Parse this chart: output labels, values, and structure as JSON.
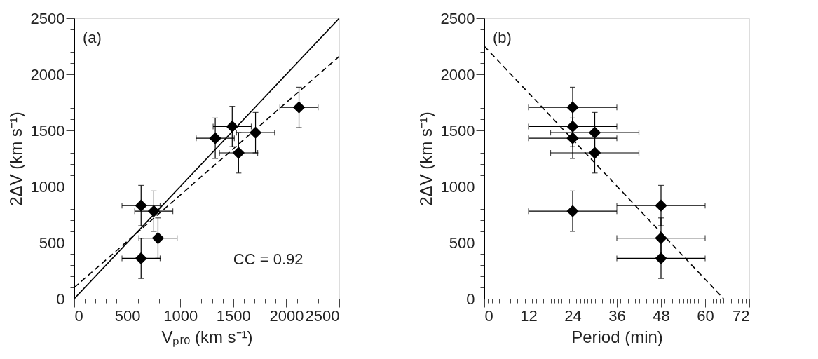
{
  "chart_data": [
    {
      "type": "scatter",
      "xlabel": "Vₚᵣₒ (km s⁻¹)",
      "ylabel": "2ΔV (km s⁻¹)",
      "annotations": [
        "(a)",
        "CC = 0.92"
      ],
      "grid": false,
      "xlim": [
        0,
        2500
      ],
      "ylim": [
        0,
        2500
      ],
      "xticks": [
        0,
        {
          "value": 100,
          "label": null
        },
        {
          "value": 200,
          "label": null
        },
        {
          "value": 300,
          "label": null
        },
        {
          "value": 400,
          "label": null
        },
        500,
        {
          "value": 600,
          "label": null
        },
        {
          "value": 700,
          "label": null
        },
        {
          "value": 800,
          "label": null
        },
        {
          "value": 900,
          "label": null
        },
        1000,
        {
          "value": 1100,
          "label": null
        },
        {
          "value": 1200,
          "label": null
        },
        {
          "value": 1300,
          "label": null
        },
        {
          "value": 1400,
          "label": null
        },
        1500,
        {
          "value": 1600,
          "label": null
        },
        {
          "value": 1700,
          "label": null
        },
        {
          "value": 1800,
          "label": null
        },
        {
          "value": 1900,
          "label": null
        },
        2000,
        {
          "value": 2100,
          "label": null
        },
        {
          "value": 2200,
          "label": null
        },
        {
          "value": 2300,
          "label": null
        },
        {
          "value": 2400,
          "label": null
        },
        2500
      ],
      "yticks": [
        0,
        {
          "value": 100,
          "label": null
        },
        {
          "value": 200,
          "label": null
        },
        {
          "value": 300,
          "label": null
        },
        {
          "value": 400,
          "label": null
        },
        500,
        {
          "value": 600,
          "label": null
        },
        {
          "value": 700,
          "label": null
        },
        {
          "value": 800,
          "label": null
        },
        {
          "value": 900,
          "label": null
        },
        1000,
        {
          "value": 1100,
          "label": null
        },
        {
          "value": 1200,
          "label": null
        },
        {
          "value": 1300,
          "label": null
        },
        {
          "value": 1400,
          "label": null
        },
        1500,
        {
          "value": 1600,
          "label": null
        },
        {
          "value": 1700,
          "label": null
        },
        {
          "value": 1800,
          "label": null
        },
        {
          "value": 1900,
          "label": null
        },
        2000,
        {
          "value": 2100,
          "label": null
        },
        {
          "value": 2200,
          "label": null
        },
        {
          "value": 2300,
          "label": null
        },
        {
          "value": 2400,
          "label": null
        },
        2500
      ],
      "series": [
        {
          "type": "scatter",
          "color": "#000000",
          "marker": "diamond",
          "x": [
            630,
            750,
            790,
            630,
            1330,
            1490,
            1550,
            1710,
            2120
          ],
          "values": [
            830,
            780,
            540,
            360,
            1430,
            1535,
            1300,
            1480,
            1705
          ],
          "errors": [
            180,
            180,
            180,
            180,
            180,
            180,
            180,
            180,
            180
          ],
          "xerrors": [
            180,
            180,
            180,
            180,
            180,
            180,
            180,
            180,
            180
          ]
        },
        {
          "type": "line",
          "color": "#000000",
          "line_style": "solid",
          "x": [
            0,
            2500
          ],
          "values": [
            0,
            2500
          ]
        },
        {
          "type": "line",
          "color": "#000000",
          "line_style": "dashed",
          "x": [
            0,
            2500
          ],
          "values": [
            100,
            2160
          ]
        }
      ]
    },
    {
      "type": "scatter",
      "xlabel": "Period (min)",
      "ylabel": "2ΔV (km s⁻¹)",
      "annotations": [
        "(b)"
      ],
      "grid": false,
      "xlim": [
        0,
        72
      ],
      "ylim": [
        0,
        2500
      ],
      "xticks": [
        0,
        {
          "value": 1,
          "label": null
        },
        {
          "value": 2,
          "label": null
        },
        {
          "value": 3,
          "label": null
        },
        {
          "value": 4,
          "label": null
        },
        {
          "value": 5,
          "label": null
        },
        {
          "value": 6,
          "label": null
        },
        {
          "value": 7,
          "label": null
        },
        {
          "value": 8,
          "label": null
        },
        {
          "value": 9,
          "label": null
        },
        {
          "value": 10,
          "label": null
        },
        {
          "value": 11,
          "label": null
        },
        12,
        {
          "value": 13,
          "label": null
        },
        {
          "value": 14,
          "label": null
        },
        {
          "value": 15,
          "label": null
        },
        {
          "value": 16,
          "label": null
        },
        {
          "value": 17,
          "label": null
        },
        {
          "value": 18,
          "label": null
        },
        {
          "value": 19,
          "label": null
        },
        {
          "value": 20,
          "label": null
        },
        {
          "value": 21,
          "label": null
        },
        {
          "value": 22,
          "label": null
        },
        {
          "value": 23,
          "label": null
        },
        24,
        {
          "value": 25,
          "label": null
        },
        {
          "value": 26,
          "label": null
        },
        {
          "value": 27,
          "label": null
        },
        {
          "value": 28,
          "label": null
        },
        {
          "value": 29,
          "label": null
        },
        {
          "value": 30,
          "label": null
        },
        {
          "value": 31,
          "label": null
        },
        {
          "value": 32,
          "label": null
        },
        {
          "value": 33,
          "label": null
        },
        {
          "value": 34,
          "label": null
        },
        {
          "value": 35,
          "label": null
        },
        36,
        {
          "value": 37,
          "label": null
        },
        {
          "value": 38,
          "label": null
        },
        {
          "value": 39,
          "label": null
        },
        {
          "value": 40,
          "label": null
        },
        {
          "value": 41,
          "label": null
        },
        {
          "value": 42,
          "label": null
        },
        {
          "value": 43,
          "label": null
        },
        {
          "value": 44,
          "label": null
        },
        {
          "value": 45,
          "label": null
        },
        {
          "value": 46,
          "label": null
        },
        {
          "value": 47,
          "label": null
        },
        48,
        {
          "value": 49,
          "label": null
        },
        {
          "value": 50,
          "label": null
        },
        {
          "value": 51,
          "label": null
        },
        {
          "value": 52,
          "label": null
        },
        {
          "value": 53,
          "label": null
        },
        {
          "value": 54,
          "label": null
        },
        {
          "value": 55,
          "label": null
        },
        {
          "value": 56,
          "label": null
        },
        {
          "value": 57,
          "label": null
        },
        {
          "value": 58,
          "label": null
        },
        {
          "value": 59,
          "label": null
        },
        60,
        {
          "value": 61,
          "label": null
        },
        {
          "value": 62,
          "label": null
        },
        {
          "value": 63,
          "label": null
        },
        {
          "value": 64,
          "label": null
        },
        {
          "value": 65,
          "label": null
        },
        {
          "value": 66,
          "label": null
        },
        {
          "value": 67,
          "label": null
        },
        {
          "value": 68,
          "label": null
        },
        {
          "value": 69,
          "label": null
        },
        {
          "value": 70,
          "label": null
        },
        {
          "value": 71,
          "label": null
        },
        72
      ],
      "yticks": [
        0,
        {
          "value": 100,
          "label": null
        },
        {
          "value": 200,
          "label": null
        },
        {
          "value": 300,
          "label": null
        },
        {
          "value": 400,
          "label": null
        },
        500,
        {
          "value": 600,
          "label": null
        },
        {
          "value": 700,
          "label": null
        },
        {
          "value": 800,
          "label": null
        },
        {
          "value": 900,
          "label": null
        },
        1000,
        {
          "value": 1100,
          "label": null
        },
        {
          "value": 1200,
          "label": null
        },
        {
          "value": 1300,
          "label": null
        },
        {
          "value": 1400,
          "label": null
        },
        1500,
        {
          "value": 1600,
          "label": null
        },
        {
          "value": 1700,
          "label": null
        },
        {
          "value": 1800,
          "label": null
        },
        {
          "value": 1900,
          "label": null
        },
        2000,
        {
          "value": 2100,
          "label": null
        },
        {
          "value": 2200,
          "label": null
        },
        {
          "value": 2300,
          "label": null
        },
        {
          "value": 2400,
          "label": null
        },
        2500
      ],
      "series": [
        {
          "type": "scatter",
          "color": "#000000",
          "marker": "diamond",
          "x": [
            48,
            24,
            48,
            48,
            24,
            24,
            30,
            30,
            24
          ],
          "values": [
            830,
            780,
            540,
            360,
            1430,
            1535,
            1300,
            1480,
            1705
          ],
          "errors": [
            180,
            180,
            180,
            180,
            180,
            180,
            180,
            180,
            180
          ],
          "xerrors": [
            12,
            12,
            12,
            12,
            12,
            12,
            12,
            12,
            12
          ]
        },
        {
          "type": "line",
          "color": "#000000",
          "line_style": "dashed",
          "x": [
            0,
            65
          ],
          "values": [
            2250,
            0
          ]
        }
      ]
    }
  ]
}
